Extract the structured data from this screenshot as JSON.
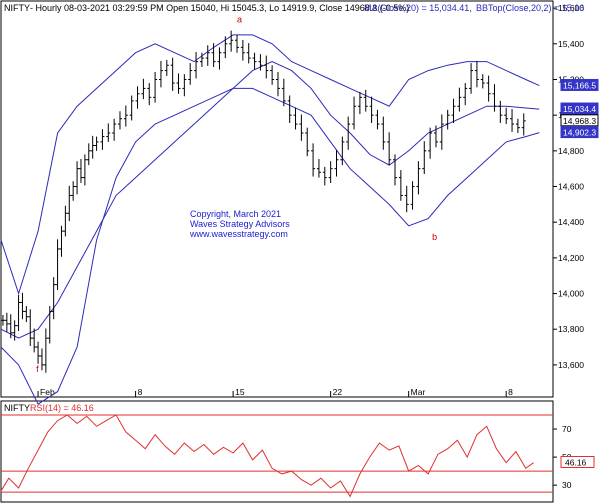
{
  "header": {
    "symbol": "NIFTY",
    "info": "- Hourly 08-03-2021 03:29:59 PM Open 15040, Hi 15045.3, Lo 14919.9, Close 14968.3 (-0.5%)",
    "ma_label": "MA(Close,20) = 15,034.41,",
    "bb_label": "BBTop(Close,20,2) = 15,16"
  },
  "watermark": {
    "line1": "Copyright, March 2021",
    "line2": "Waves Strategy Advisors",
    "line3": "www.wavesstrategy.com"
  },
  "annotations": [
    {
      "text": "a",
      "date_index": 11.2,
      "price": 15520
    },
    {
      "text": "b",
      "date_index": 21.2,
      "price": 14300
    },
    {
      "text": "f",
      "date_index": 0.9,
      "price": 13560
    }
  ],
  "price_badges": [
    {
      "text": "15,166.5",
      "value": 15166.5,
      "type": "bb"
    },
    {
      "text": "15,034.4",
      "value": 15034.4,
      "type": "ma"
    },
    {
      "text": "14,968.3",
      "value": 14968.3,
      "type": "close"
    },
    {
      "text": "14,902.3",
      "value": 14902.3,
      "type": "bb"
    }
  ],
  "rsi_panel": {
    "symbol": "NIFTY",
    "label": "RSI(14) = 46.16",
    "badge": "46.16",
    "value": 46.16
  },
  "colors": {
    "price_bars": "#000000",
    "bollinger": "#2b2bbb",
    "rsi": "#e03030",
    "annotation": "#cc0000",
    "watermark": "#1a1ad0",
    "badge_blue": "#3535c8"
  },
  "chart_data": [
    {
      "type": "ohlc",
      "title": "NIFTY - Hourly",
      "x_ticks": [
        {
          "label": "Feb",
          "index": 1
        },
        {
          "label": "8",
          "index": 6
        },
        {
          "label": "15",
          "index": 11
        },
        {
          "label": "22",
          "index": 16
        },
        {
          "label": "Mar",
          "index": 20
        },
        {
          "label": "8",
          "index": 25
        }
      ],
      "y_ticks": [
        13600,
        13800,
        14000,
        14200,
        14400,
        14600,
        14800,
        15000,
        15200,
        15400,
        15600
      ],
      "ylim": [
        13420,
        15640
      ],
      "xlim": [
        -0.9,
        27.4
      ],
      "series": [
        {
          "name": "Price Close",
          "x": [
            -0.8,
            -0.6,
            -0.4,
            -0.2,
            0,
            0.2,
            0.4,
            0.6,
            0.8,
            1.0,
            1.2,
            1.4,
            1.6,
            1.8,
            2.0,
            2.2,
            2.4,
            2.6,
            2.8,
            3.0,
            3.2,
            3.4,
            3.6,
            3.8,
            4.0,
            4.3,
            4.6,
            4.9,
            5.2,
            5.5,
            5.8,
            6.1,
            6.4,
            6.7,
            7.0,
            7.3,
            7.6,
            7.9,
            8.2,
            8.5,
            8.8,
            9.1,
            9.4,
            9.7,
            10.0,
            10.3,
            10.6,
            10.9,
            11.2,
            11.5,
            11.8,
            12.1,
            12.4,
            12.7,
            13.0,
            13.3,
            13.6,
            13.9,
            14.2,
            14.5,
            14.8,
            15.1,
            15.4,
            15.7,
            16.0,
            16.3,
            16.6,
            16.9,
            17.2,
            17.5,
            17.8,
            18.1,
            18.4,
            18.7,
            19.0,
            19.3,
            19.6,
            19.9,
            20.2,
            20.5,
            20.8,
            21.1,
            21.4,
            21.7,
            22.0,
            22.3,
            22.6,
            22.9,
            23.2,
            23.5,
            23.8,
            24.1,
            24.4,
            24.7,
            25.0,
            25.3,
            25.6,
            25.9
          ],
          "values": [
            13850,
            13830,
            13780,
            13820,
            13950,
            13900,
            13870,
            13750,
            13700,
            13650,
            13600,
            13750,
            13900,
            14050,
            14250,
            14350,
            14450,
            14550,
            14600,
            14700,
            14650,
            14750,
            14800,
            14830,
            14850,
            14880,
            14900,
            14950,
            14980,
            15000,
            15080,
            15120,
            15150,
            15100,
            15200,
            15250,
            15280,
            15180,
            15150,
            15200,
            15250,
            15300,
            15320,
            15350,
            15300,
            15350,
            15400,
            15420,
            15380,
            15350,
            15320,
            15300,
            15280,
            15250,
            15200,
            15150,
            15080,
            15000,
            14950,
            14900,
            14800,
            14700,
            14680,
            14650,
            14700,
            14750,
            14850,
            14950,
            15050,
            15100,
            15050,
            15000,
            14950,
            14850,
            14750,
            14650,
            14550,
            14500,
            14600,
            14700,
            14800,
            14900,
            14850,
            14950,
            15000,
            15050,
            15100,
            15150,
            15250,
            15200,
            15180,
            15120,
            15050,
            15000,
            14980,
            14950,
            14930,
            14968
          ]
        },
        {
          "name": "MA(Close,20)",
          "x": [
            -0.9,
            0,
            1,
            2,
            3,
            4,
            5,
            6,
            7,
            8,
            9,
            10,
            11,
            12,
            13,
            14,
            15,
            16,
            17,
            18,
            19,
            20,
            21,
            22,
            23,
            24,
            25,
            26,
            26.7
          ],
          "values": [
            13800,
            13750,
            13800,
            13950,
            14150,
            14350,
            14550,
            14650,
            14750,
            14850,
            14950,
            15050,
            15150,
            15250,
            15300,
            15250,
            15150,
            15000,
            14900,
            14780,
            14720,
            14800,
            14900,
            14950,
            15000,
            15050,
            15050,
            15040,
            15034
          ]
        },
        {
          "name": "BBTop(Close,20,2)",
          "x": [
            -0.9,
            0,
            1,
            2,
            3,
            4,
            5,
            6,
            7,
            8,
            9,
            10,
            11,
            12,
            13,
            14,
            15,
            16,
            17,
            18,
            19,
            20,
            21,
            22,
            23,
            24,
            25,
            26,
            26.7
          ],
          "values": [
            14300,
            14000,
            14350,
            14900,
            15050,
            15150,
            15250,
            15350,
            15400,
            15350,
            15300,
            15380,
            15450,
            15450,
            15400,
            15300,
            15250,
            15200,
            15150,
            15100,
            15050,
            15200,
            15250,
            15280,
            15300,
            15300,
            15250,
            15200,
            15166
          ]
        },
        {
          "name": "BBBottom(Close,20,2)",
          "x": [
            -0.9,
            0,
            1,
            2,
            3,
            4,
            5,
            6,
            7,
            8,
            9,
            10,
            11,
            12,
            13,
            14,
            15,
            16,
            17,
            18,
            19,
            20,
            21,
            22,
            23,
            24,
            25,
            26,
            26.7
          ],
          "values": [
            13700,
            13600,
            13380,
            13450,
            13700,
            14300,
            14650,
            14850,
            14950,
            15000,
            15050,
            15100,
            15150,
            15150,
            15100,
            15050,
            15000,
            14850,
            14700,
            14600,
            14500,
            14380,
            14420,
            14550,
            14650,
            14750,
            14850,
            14880,
            14902
          ]
        }
      ]
    },
    {
      "type": "line",
      "title": "RSI(14)",
      "y_ticks": [
        30,
        50,
        70
      ],
      "ylim": [
        18,
        90
      ],
      "reference_lines": [
        80,
        40,
        25
      ],
      "series": [
        {
          "name": "RSI(14)",
          "x": [
            -0.9,
            -0.5,
            0,
            0.5,
            1,
            1.5,
            2,
            2.5,
            3,
            3.5,
            4,
            4.5,
            5,
            5.5,
            6,
            6.5,
            7,
            7.5,
            8,
            8.5,
            9,
            9.5,
            10,
            10.5,
            11,
            11.5,
            12,
            12.5,
            13,
            13.5,
            14,
            14.5,
            15,
            15.5,
            16,
            16.5,
            17,
            17.5,
            18,
            18.5,
            19,
            19.5,
            20,
            20.5,
            21,
            21.5,
            22,
            22.5,
            23,
            23.5,
            24,
            24.5,
            25,
            25.5,
            26,
            26.4
          ],
          "values": [
            26,
            35,
            28,
            42,
            55,
            68,
            76,
            80,
            74,
            79,
            72,
            76,
            80,
            68,
            62,
            56,
            66,
            58,
            52,
            60,
            54,
            59,
            52,
            57,
            53,
            60,
            48,
            55,
            42,
            38,
            40,
            34,
            30,
            35,
            28,
            33,
            22,
            38,
            50,
            60,
            55,
            58,
            40,
            44,
            38,
            52,
            56,
            62,
            50,
            66,
            72,
            56,
            46,
            54,
            42,
            46
          ]
        }
      ]
    }
  ]
}
